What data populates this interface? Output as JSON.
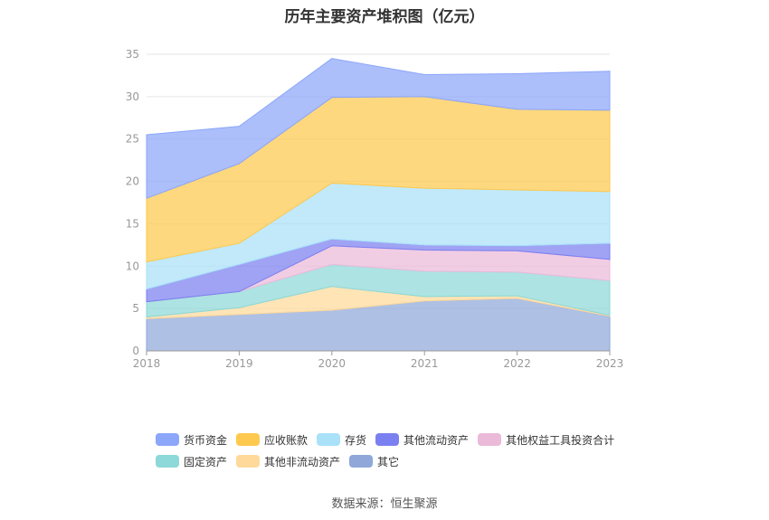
{
  "chart_data": {
    "type": "area",
    "stacked": true,
    "title": "历年主要资产堆积图（亿元）",
    "x": [
      "2018",
      "2019",
      "2020",
      "2021",
      "2022",
      "2023"
    ],
    "ylim": [
      0,
      35
    ],
    "yticks": [
      0,
      5,
      10,
      15,
      20,
      25,
      30,
      35
    ],
    "grid": true,
    "legend_position": "bottom",
    "series": [
      {
        "name": "其它",
        "color": "#8fa8d9",
        "values": [
          3.8,
          4.3,
          4.8,
          5.9,
          6.2,
          4.1
        ]
      },
      {
        "name": "其他非流动资产",
        "color": "#ffd99a",
        "values": [
          0.2,
          0.8,
          2.8,
          0.5,
          0.3,
          0.1
        ]
      },
      {
        "name": "固定资产",
        "color": "#8dd8d8",
        "values": [
          1.8,
          1.9,
          2.6,
          3.0,
          2.8,
          4.1
        ]
      },
      {
        "name": "其他权益工具投资合计",
        "color": "#ebbad9",
        "values": [
          0.0,
          0.0,
          2.2,
          2.5,
          2.5,
          2.5
        ]
      },
      {
        "name": "其他流动资产",
        "color": "#7b80f0",
        "values": [
          1.5,
          3.2,
          0.8,
          0.6,
          0.6,
          1.9
        ]
      },
      {
        "name": "存货",
        "color": "#a9e1f8",
        "values": [
          3.2,
          2.5,
          6.6,
          6.7,
          6.6,
          6.1
        ]
      },
      {
        "name": "应收账款",
        "color": "#fec94e",
        "values": [
          7.5,
          9.4,
          10.1,
          10.8,
          9.5,
          9.6
        ]
      },
      {
        "name": "货币资金",
        "color": "#8ca6fa",
        "values": [
          7.5,
          4.4,
          4.6,
          2.6,
          4.2,
          4.6
        ]
      }
    ],
    "legend_order": [
      "货币资金",
      "应收账款",
      "存货",
      "其他流动资产",
      "其他权益工具投资合计",
      "固定资产",
      "其他非流动资产",
      "其它"
    ]
  },
  "source_text": "数据来源：恒生聚源"
}
